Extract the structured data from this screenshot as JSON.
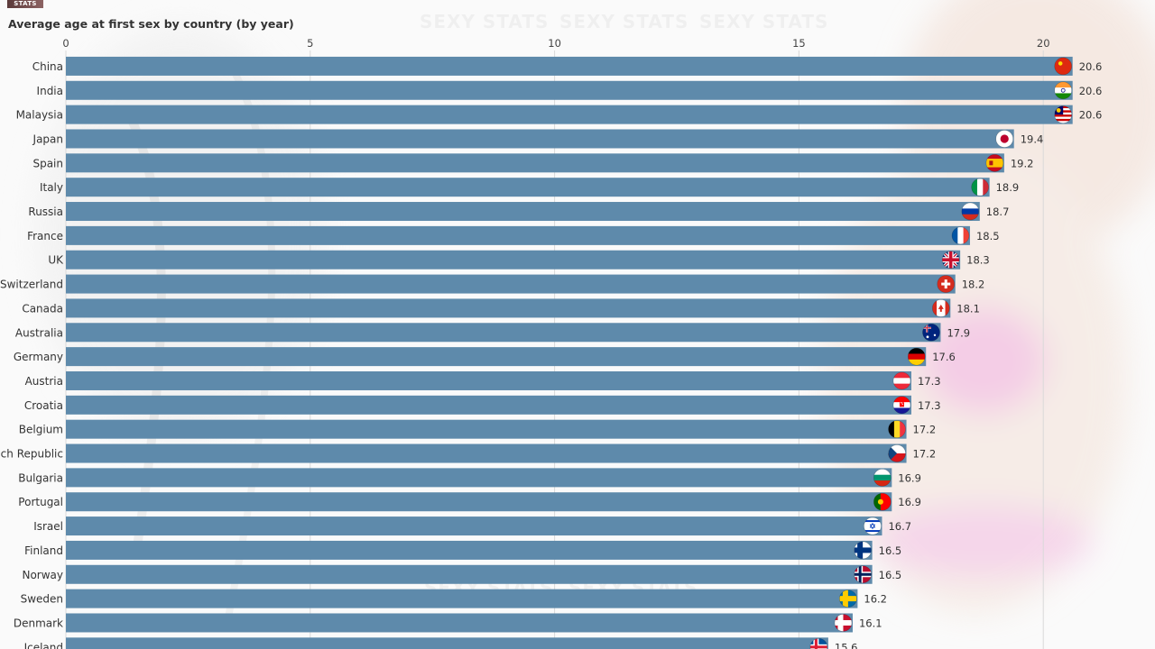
{
  "logo_text": "STATS",
  "watermark_text": "SEXY STATS",
  "chart_data": {
    "type": "bar",
    "orientation": "horizontal",
    "title": "Average age at first sex by country (by year)",
    "xlim": [
      0,
      20.6
    ],
    "xticks": [
      0,
      5,
      10,
      15,
      20
    ],
    "grid": true,
    "bar_color": "#5e8aab",
    "categories": [
      "China",
      "India",
      "Malaysia",
      "Japan",
      "Spain",
      "Italy",
      "Russia",
      "France",
      "UK",
      "Switzerland",
      "Canada",
      "Australia",
      "Germany",
      "Austria",
      "Croatia",
      "Belgium",
      "Czech Republic",
      "Bulgaria",
      "Portugal",
      "Israel",
      "Finland",
      "Norway",
      "Sweden",
      "Denmark",
      "Iceland"
    ],
    "values": [
      20.6,
      20.6,
      20.6,
      19.4,
      19.2,
      18.9,
      18.7,
      18.5,
      18.3,
      18.2,
      18.1,
      17.9,
      17.6,
      17.3,
      17.3,
      17.2,
      17.2,
      16.9,
      16.9,
      16.7,
      16.5,
      16.5,
      16.2,
      16.1,
      15.6
    ],
    "flags": [
      "china-flag-icon",
      "india-flag-icon",
      "malaysia-flag-icon",
      "japan-flag-icon",
      "spain-flag-icon",
      "italy-flag-icon",
      "russia-flag-icon",
      "france-flag-icon",
      "uk-flag-icon",
      "switzerland-flag-icon",
      "canada-flag-icon",
      "australia-flag-icon",
      "germany-flag-icon",
      "austria-flag-icon",
      "croatia-flag-icon",
      "belgium-flag-icon",
      "czech-republic-flag-icon",
      "bulgaria-flag-icon",
      "portugal-flag-icon",
      "israel-flag-icon",
      "finland-flag-icon",
      "norway-flag-icon",
      "sweden-flag-icon",
      "denmark-flag-icon",
      "iceland-flag-icon"
    ]
  }
}
